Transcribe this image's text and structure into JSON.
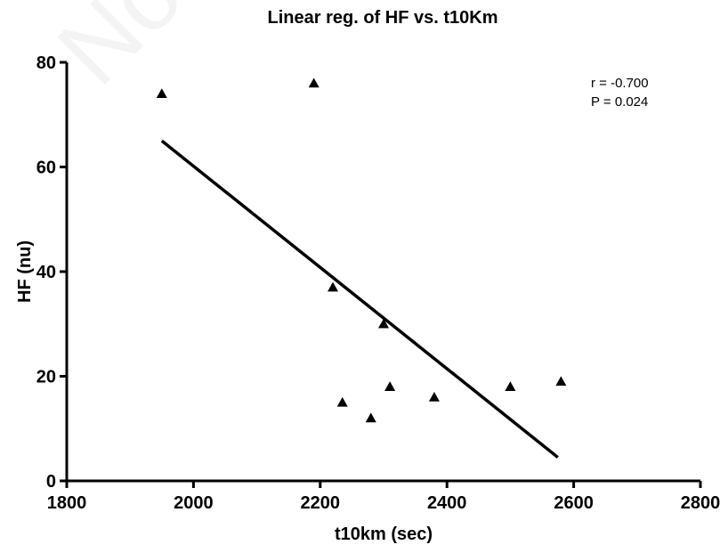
{
  "watermark": "Non co",
  "chart_data": {
    "type": "scatter",
    "title": "Linear reg. of HF vs. t10Km",
    "xlabel": "t10km (sec)",
    "ylabel": "HF (nu)",
    "xlim": [
      1800,
      2800
    ],
    "ylim": [
      0,
      80
    ],
    "x_ticks": [
      1800,
      2000,
      2200,
      2400,
      2600,
      2800
    ],
    "y_ticks": [
      0,
      20,
      40,
      60,
      80
    ],
    "grid": false,
    "marker": "triangle",
    "points": [
      {
        "x": 1950,
        "y": 74
      },
      {
        "x": 2190,
        "y": 76
      },
      {
        "x": 2220,
        "y": 37
      },
      {
        "x": 2235,
        "y": 15
      },
      {
        "x": 2280,
        "y": 12
      },
      {
        "x": 2300,
        "y": 30
      },
      {
        "x": 2310,
        "y": 18
      },
      {
        "x": 2380,
        "y": 16
      },
      {
        "x": 2500,
        "y": 18
      },
      {
        "x": 2580,
        "y": 19
      }
    ],
    "regression_line": {
      "x1": 1950,
      "y1": 65,
      "x2": 2575,
      "y2": 4.5
    },
    "annotations": {
      "r": "r = -0.700",
      "p": "P = 0.024"
    }
  }
}
